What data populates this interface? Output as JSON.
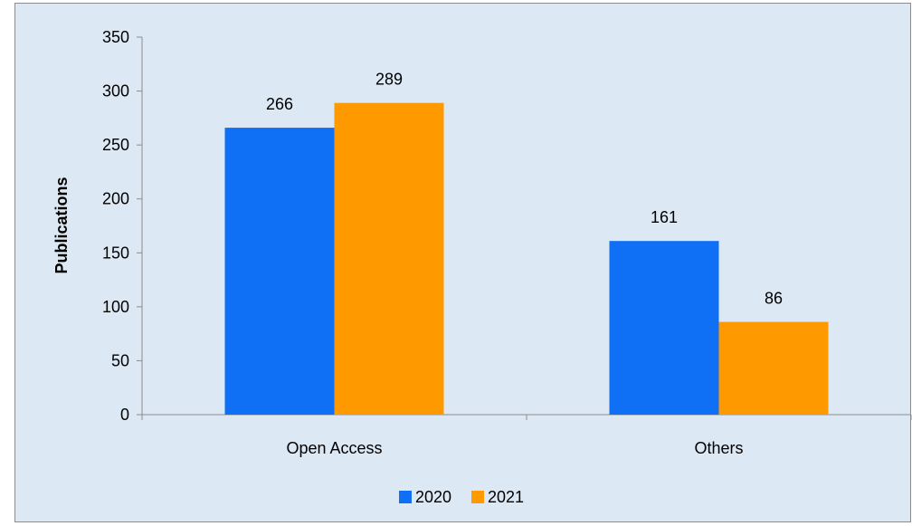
{
  "chart_data": {
    "type": "bar",
    "categories": [
      "Open Access",
      "Others"
    ],
    "series": [
      {
        "name": "2020",
        "values": [
          266,
          161
        ],
        "color": "#0f6ff5"
      },
      {
        "name": "2021",
        "values": [
          289,
          86
        ],
        "color": "#ff9900"
      }
    ],
    "xlabel": "",
    "ylabel": "Publications",
    "ylim": [
      0,
      350
    ],
    "yticks": [
      0,
      50,
      100,
      150,
      200,
      250,
      300,
      350
    ],
    "grid": false,
    "legend": "bottom",
    "plot_background": "#dde8f5"
  }
}
